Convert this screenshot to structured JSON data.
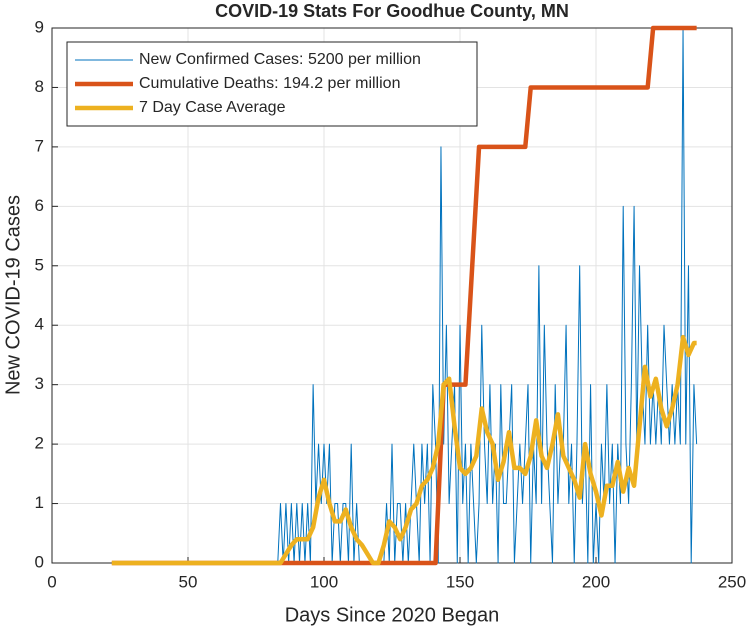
{
  "chart_data": {
    "type": "line",
    "title": "COVID-19 Stats For Goodhue County, MN",
    "xlabel": "Days Since 2020 Began",
    "ylabel": "New COVID-19 Cases",
    "xlim": [
      0,
      250
    ],
    "xticks": [
      0,
      50,
      100,
      150,
      200,
      250
    ],
    "ylim": [
      0,
      9
    ],
    "yticks": [
      0,
      1,
      2,
      3,
      4,
      5,
      6,
      7,
      8,
      9
    ],
    "grid": true,
    "legend": "upper left",
    "series": [
      {
        "name": "New Confirmed Cases: 5200 per million",
        "color": "#0072bd",
        "width": 1,
        "x": [
          22,
          83,
          84,
          85,
          86,
          87,
          88,
          89,
          90,
          91,
          92,
          93,
          94,
          95,
          96,
          97,
          98,
          99,
          100,
          101,
          102,
          103,
          104,
          105,
          106,
          107,
          108,
          109,
          110,
          111,
          112,
          113,
          114,
          115,
          116,
          117,
          118,
          119,
          120,
          121,
          122,
          123,
          124,
          125,
          126,
          127,
          128,
          129,
          130,
          131,
          132,
          133,
          134,
          135,
          136,
          137,
          138,
          139,
          140,
          141,
          142,
          143,
          144,
          145,
          146,
          147,
          148,
          149,
          150,
          151,
          152,
          153,
          154,
          155,
          156,
          157,
          158,
          159,
          160,
          161,
          162,
          163,
          164,
          165,
          166,
          167,
          168,
          169,
          170,
          171,
          172,
          173,
          174,
          175,
          176,
          177,
          178,
          179,
          180,
          181,
          182,
          183,
          184,
          185,
          186,
          187,
          188,
          189,
          190,
          191,
          192,
          193,
          194,
          195,
          196,
          197,
          198,
          199,
          200,
          201,
          202,
          203,
          204,
          205,
          206,
          207,
          208,
          209,
          210,
          211,
          212,
          213,
          214,
          215,
          216,
          217,
          218,
          219,
          220,
          221,
          222,
          223,
          224,
          225,
          226,
          227,
          228,
          229,
          230,
          231,
          232,
          233,
          234,
          235,
          236,
          237
        ],
        "values": [
          0,
          0,
          1,
          0,
          1,
          0,
          1,
          0,
          1,
          0,
          1,
          0,
          1,
          0,
          3,
          1,
          2,
          1,
          2,
          1,
          2,
          0,
          1,
          1,
          0,
          1,
          1,
          0,
          2,
          0,
          1,
          0,
          0,
          0,
          0,
          0,
          0,
          0,
          0,
          0,
          0,
          1,
          0,
          2,
          0,
          1,
          1,
          0,
          1,
          0,
          1,
          2,
          1,
          0,
          2,
          1,
          2,
          0,
          3,
          2,
          0,
          7,
          2,
          4,
          1,
          2,
          3,
          0,
          4,
          1,
          2,
          0,
          2,
          1,
          0,
          1,
          4,
          2,
          1,
          3,
          1,
          2,
          0,
          3,
          1,
          1,
          2,
          3,
          0,
          1,
          2,
          1,
          2,
          3,
          0,
          2,
          1,
          5,
          1,
          4,
          2,
          1,
          0,
          3,
          1,
          2,
          2,
          4,
          1,
          2,
          0,
          2,
          5,
          1,
          2,
          0,
          3,
          0,
          1,
          0,
          2,
          1,
          3,
          1,
          2,
          0,
          2,
          1,
          6,
          2,
          1,
          3,
          6,
          2,
          5,
          3,
          2,
          4,
          2,
          3,
          2,
          3,
          2,
          4,
          3,
          2,
          3,
          2,
          3,
          2,
          9,
          2,
          5,
          0,
          3,
          2
        ]
      },
      {
        "name": "Cumulative Deaths: 194.2 per million",
        "color": "#d95319",
        "width": 4.5,
        "x": [
          22,
          141,
          143,
          144,
          152,
          157,
          174,
          176,
          219,
          221,
          237
        ],
        "values": [
          0,
          0,
          2,
          3,
          3,
          7,
          7,
          8,
          8,
          9,
          9
        ]
      },
      {
        "name": "7 Day Case Average",
        "color": "#edb120",
        "width": 4.5,
        "x": [
          22,
          84,
          88,
          90,
          94,
          96,
          98,
          100,
          102,
          104,
          106,
          108,
          110,
          112,
          114,
          118,
          120,
          122,
          124,
          126,
          128,
          130,
          132,
          134,
          136,
          138,
          140,
          142,
          144,
          146,
          148,
          150,
          152,
          154,
          156,
          158,
          160,
          162,
          164,
          166,
          168,
          170,
          172,
          174,
          176,
          178,
          180,
          182,
          184,
          186,
          188,
          190,
          192,
          194,
          196,
          198,
          200,
          202,
          204,
          206,
          208,
          210,
          212,
          214,
          216,
          218,
          220,
          222,
          224,
          226,
          228,
          230,
          232,
          234,
          236,
          237
        ],
        "values": [
          0,
          0,
          0.3,
          0.4,
          0.4,
          0.6,
          1.1,
          1.4,
          1.0,
          0.7,
          0.7,
          0.9,
          0.6,
          0.4,
          0.3,
          0,
          0,
          0.3,
          0.7,
          0.6,
          0.4,
          0.6,
          0.9,
          1.0,
          1.3,
          1.4,
          1.6,
          2.0,
          3.0,
          3.1,
          2.3,
          1.6,
          1.5,
          1.6,
          1.8,
          2.6,
          2.2,
          2.0,
          1.4,
          1.7,
          2.2,
          1.6,
          1.6,
          1.5,
          1.8,
          2.4,
          1.8,
          1.6,
          2.0,
          2.5,
          1.8,
          1.6,
          1.4,
          1.1,
          2.0,
          1.5,
          1.2,
          0.8,
          1.3,
          1.3,
          1.7,
          1.2,
          1.6,
          1.3,
          2.3,
          3.3,
          2.8,
          3.1,
          2.6,
          2.3,
          2.6,
          3.0,
          3.8,
          3.5,
          3.7,
          3.7
        ]
      }
    ]
  }
}
